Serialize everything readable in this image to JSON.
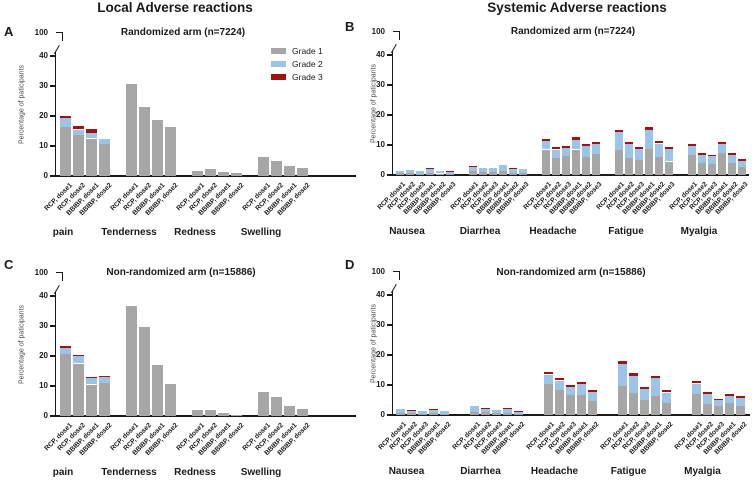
{
  "figure": {
    "title_local": "Local Adverse reactions",
    "title_systemic": "Systemic Adverse reactions",
    "y_axis_label": "Percentage of paticipants",
    "y_ticks": [
      "0",
      "10",
      "20",
      "30",
      "40"
    ],
    "y_break_top": "100",
    "colors": {
      "grade1": "#a6a6a6",
      "grade2": "#9dc3e6",
      "grade3": "#9b1313"
    },
    "legend": [
      {
        "label": "Grade 1",
        "color": "#a6a6a6"
      },
      {
        "label": "Grade 2",
        "color": "#9dc3e6"
      },
      {
        "label": "Grade 3",
        "color": "#9b1313"
      }
    ]
  },
  "chart_data": [
    {
      "panel": "A",
      "type": "bar",
      "stacked": true,
      "title": "Randomized arm (n=7224)",
      "ylabel": "Percentage of paticipants",
      "ylim": [
        0,
        40
      ],
      "y_axis_break_to": 100,
      "legend_position": "top-right",
      "series_names": [
        "Grade 1",
        "Grade 2",
        "Grade 3"
      ],
      "groups": [
        {
          "category": "pain",
          "bars": [
            {
              "label": "RCP, dose1",
              "values": [
                16.2,
                3.0,
                0.9
              ]
            },
            {
              "label": "RCP, dose2",
              "values": [
                13.7,
                1.8,
                1.1
              ]
            },
            {
              "label": "BBIBP, dose1",
              "values": [
                12.5,
                1.7,
                1.6
              ]
            },
            {
              "label": "BBIBP, dose2",
              "values": [
                10.8,
                1.5,
                0
              ]
            }
          ]
        },
        {
          "category": "Tenderness",
          "bars": [
            {
              "label": "RCP, dose1",
              "values": [
                30.8,
                0,
                0
              ]
            },
            {
              "label": "RCP, dose2",
              "values": [
                23.1,
                0,
                0
              ]
            },
            {
              "label": "BBIBP, dose1",
              "values": [
                18.7,
                0,
                0
              ]
            },
            {
              "label": "BBIBP, dose2",
              "values": [
                16.5,
                0,
                0
              ]
            }
          ]
        },
        {
          "category": "Redness",
          "bars": [
            {
              "label": "RCP, dose1",
              "values": [
                1.8,
                0,
                0
              ]
            },
            {
              "label": "RCP, dose2",
              "values": [
                2.3,
                0,
                0
              ]
            },
            {
              "label": "BBIBP, dose1",
              "values": [
                1.2,
                0,
                0
              ]
            },
            {
              "label": "BBIBP, dose2",
              "values": [
                1.0,
                0,
                0
              ]
            }
          ]
        },
        {
          "category": "Swelling",
          "bars": [
            {
              "label": "RCP, dose1",
              "values": [
                6.3,
                0,
                0
              ]
            },
            {
              "label": "RCP, dose2",
              "values": [
                5.0,
                0,
                0
              ]
            },
            {
              "label": "BBIBP, dose1",
              "values": [
                3.5,
                0,
                0
              ]
            },
            {
              "label": "BBIBP, dose2",
              "values": [
                2.8,
                0,
                0
              ]
            }
          ]
        }
      ]
    },
    {
      "panel": "B",
      "type": "bar",
      "stacked": true,
      "title": "Randomized arm (n=7224)",
      "ylabel": "Percentage of paticipants",
      "ylim": [
        0,
        40
      ],
      "y_axis_break_to": 100,
      "series_names": [
        "Grade 1",
        "Grade 2",
        "Grade 3"
      ],
      "groups": [
        {
          "category": "Nausea",
          "bars": [
            {
              "label": "RCP, dose1",
              "values": [
                0.6,
                0.9,
                0
              ]
            },
            {
              "label": "RCP, dose2",
              "values": [
                0.7,
                1.1,
                0
              ]
            },
            {
              "label": "RCP, dose3",
              "values": [
                0.4,
                0.8,
                0
              ]
            },
            {
              "label": "BBIBP, dose1",
              "values": [
                0.8,
                1.2,
                0.2
              ]
            },
            {
              "label": "BBIBP, dose2",
              "values": [
                0.5,
                0.8,
                0
              ]
            },
            {
              "label": "BBIBP, dose3",
              "values": [
                0.4,
                0.9,
                0.2
              ]
            }
          ]
        },
        {
          "category": "Diarrhea",
          "bars": [
            {
              "label": "RCP, dose1",
              "values": [
                1.2,
                1.4,
                0.3
              ]
            },
            {
              "label": "RCP, dose2",
              "values": [
                1.0,
                1.3,
                0
              ]
            },
            {
              "label": "RCP, dose3",
              "values": [
                0.9,
                1.4,
                0
              ]
            },
            {
              "label": "BBIBP, dose1",
              "values": [
                1.2,
                2.0,
                0
              ]
            },
            {
              "label": "BBIBP, dose2",
              "values": [
                0.8,
                1.2,
                0.3
              ]
            },
            {
              "label": "BBIBP, dose3",
              "values": [
                0.7,
                1.2,
                0
              ]
            }
          ]
        },
        {
          "category": "Headache",
          "bars": [
            {
              "label": "RCP, dose1",
              "values": [
                8.5,
                2.7,
                0.8
              ]
            },
            {
              "label": "RCP, dose2",
              "values": [
                5.6,
                2.9,
                0.7
              ]
            },
            {
              "label": "RCP, dose3",
              "values": [
                6.3,
                2.6,
                0.8
              ]
            },
            {
              "label": "BBIBP, dose1",
              "values": [
                8.5,
                3.2,
                1.0
              ]
            },
            {
              "label": "BBIBP, dose2",
              "values": [
                6.1,
                3.5,
                0.8
              ]
            },
            {
              "label": "BBIBP, dose3",
              "values": [
                7.0,
                3.2,
                0.7
              ]
            }
          ]
        },
        {
          "category": "Fatigue",
          "bars": [
            {
              "label": "RCP, dose1",
              "values": [
                8.3,
                6.1,
                0.7
              ]
            },
            {
              "label": "RCP, dose2",
              "values": [
                5.6,
                4.7,
                0.7
              ]
            },
            {
              "label": "RCP, dose3",
              "values": [
                5.0,
                3.6,
                0.6
              ]
            },
            {
              "label": "BBIBP, dose1",
              "values": [
                8.7,
                6.4,
                0.8
              ]
            },
            {
              "label": "BBIBP, dose2",
              "values": [
                5.9,
                4.6,
                0.7
              ]
            },
            {
              "label": "BBIBP, dose3",
              "values": [
                4.5,
                4.1,
                0.6
              ]
            }
          ]
        },
        {
          "category": "Myalgia",
          "bars": [
            {
              "label": "RCP, dose1",
              "values": [
                6.6,
                3.1,
                0.5
              ]
            },
            {
              "label": "RCP, dose2",
              "values": [
                3.9,
                2.9,
                0.4
              ]
            },
            {
              "label": "RCP, dose3",
              "values": [
                3.6,
                2.7,
                0.5
              ]
            },
            {
              "label": "BBIBP, dose1",
              "values": [
                7.4,
                3.1,
                0.5
              ]
            },
            {
              "label": "BBIBP, dose2",
              "values": [
                4.0,
                2.7,
                0.5
              ]
            },
            {
              "label": "BBIBP, dose3",
              "values": [
                2.8,
                2.0,
                0.7
              ]
            }
          ]
        }
      ]
    },
    {
      "panel": "C",
      "type": "bar",
      "stacked": true,
      "title": "Non-randomized arm (n=15886)",
      "ylabel": "Percentage of paticipants",
      "ylim": [
        0,
        40
      ],
      "y_axis_break_to": 100,
      "series_names": [
        "Grade 1",
        "Grade 2",
        "Grade 3"
      ],
      "groups": [
        {
          "category": "pain",
          "bars": [
            {
              "label": "RCP, dose1",
              "values": [
                20.8,
                2.0,
                0.5
              ]
            },
            {
              "label": "RCP, dose2",
              "values": [
                17.5,
                2.6,
                0.4
              ]
            },
            {
              "label": "BBIBP, dose1",
              "values": [
                10.5,
                2.3,
                0.2
              ]
            },
            {
              "label": "BBIBP, dose2",
              "values": [
                11.0,
                1.9,
                0.4
              ]
            }
          ]
        },
        {
          "category": "Tenderness",
          "bars": [
            {
              "label": "RCP, dose1",
              "values": [
                36.8,
                0,
                0
              ]
            },
            {
              "label": "RCP, dose2",
              "values": [
                29.8,
                0,
                0
              ]
            },
            {
              "label": "BBIBP, dose1",
              "values": [
                17.0,
                0,
                0
              ]
            },
            {
              "label": "BBIBP, dose2",
              "values": [
                10.8,
                0,
                0
              ]
            }
          ]
        },
        {
          "category": "Redness",
          "bars": [
            {
              "label": "RCP, dose1",
              "values": [
                2.0,
                0,
                0
              ]
            },
            {
              "label": "RCP, dose2",
              "values": [
                1.9,
                0,
                0
              ]
            },
            {
              "label": "BBIBP, dose1",
              "values": [
                0.9,
                0,
                0
              ]
            },
            {
              "label": "BBIBP, dose2",
              "values": [
                0.5,
                0,
                0
              ]
            }
          ]
        },
        {
          "category": "Swelling",
          "bars": [
            {
              "label": "RCP, dose1",
              "values": [
                8.0,
                0,
                0
              ]
            },
            {
              "label": "RCP, dose2",
              "values": [
                6.5,
                0,
                0
              ]
            },
            {
              "label": "BBIBP, dose1",
              "values": [
                3.5,
                0,
                0
              ]
            },
            {
              "label": "BBIBP, dose2",
              "values": [
                2.5,
                0,
                0
              ]
            }
          ]
        }
      ]
    },
    {
      "panel": "D",
      "type": "bar",
      "stacked": true,
      "title": "Non-randomized arm (n=15886)",
      "ylabel": "Percentage of paticipants",
      "ylim": [
        0,
        40
      ],
      "y_axis_break_to": 100,
      "series_names": [
        "Grade 1",
        "Grade 2",
        "Grade 3"
      ],
      "groups": [
        {
          "category": "Nausea",
          "bars": [
            {
              "label": "RCP, dose1",
              "values": [
                0.7,
                1.3,
                0
              ]
            },
            {
              "label": "RCP, dose2",
              "values": [
                0.6,
                0.8,
                0.2
              ]
            },
            {
              "label": "RCP, dose3",
              "values": [
                0.4,
                0.8,
                0
              ]
            },
            {
              "label": "BBIBP, dose1",
              "values": [
                0.7,
                1.0,
                0.2
              ]
            },
            {
              "label": "BBIBP, dose2",
              "values": [
                0.5,
                1.0,
                0
              ]
            }
          ]
        },
        {
          "category": "Diarrhea",
          "bars": [
            {
              "label": "RCP, dose1",
              "values": [
                1.1,
                1.8,
                0
              ]
            },
            {
              "label": "RCP, dose2",
              "values": [
                0.9,
                1.3,
                0.2
              ]
            },
            {
              "label": "RCP, dose3",
              "values": [
                0.6,
                1.1,
                0
              ]
            },
            {
              "label": "BBIBP, dose1",
              "values": [
                0.8,
                1.4,
                0.3
              ]
            },
            {
              "label": "BBIBP, dose2",
              "values": [
                0.5,
                0.5,
                0.2
              ]
            }
          ]
        },
        {
          "category": "Headache",
          "bars": [
            {
              "label": "RCP, dose1",
              "values": [
                10.3,
                3.2,
                0.8
              ]
            },
            {
              "label": "RCP, dose2",
              "values": [
                8.2,
                3.3,
                0.8
              ]
            },
            {
              "label": "RCP, dose3",
              "values": [
                6.6,
                2.6,
                0.7
              ]
            },
            {
              "label": "BBIBP, dose1",
              "values": [
                6.8,
                3.5,
                0.8
              ]
            },
            {
              "label": "BBIBP, dose2",
              "values": [
                4.8,
                3.0,
                0.6
              ]
            }
          ]
        },
        {
          "category": "Fatigue",
          "bars": [
            {
              "label": "RCP, dose1",
              "values": [
                9.7,
                7.4,
                0.8
              ]
            },
            {
              "label": "RCP, dose2",
              "values": [
                7.3,
                5.8,
                0.8
              ]
            },
            {
              "label": "RCP, dose3",
              "values": [
                4.9,
                3.8,
                0.5
              ]
            },
            {
              "label": "BBIBP, dose1",
              "values": [
                6.4,
                5.8,
                0.8
              ]
            },
            {
              "label": "BBIBP, dose2",
              "values": [
                4.0,
                3.5,
                0.7
              ]
            }
          ]
        },
        {
          "category": "Myalgia",
          "bars": [
            {
              "label": "RCP, dose1",
              "values": [
                7.1,
                3.4,
                0.8
              ]
            },
            {
              "label": "RCP, dose2",
              "values": [
                3.8,
                3.2,
                0.7
              ]
            },
            {
              "label": "RCP, dose3",
              "values": [
                2.9,
                2.0,
                0.6
              ]
            },
            {
              "label": "BBIBP, dose1",
              "values": [
                4.1,
                2.2,
                0.7
              ]
            },
            {
              "label": "BBIBP, dose2",
              "values": [
                2.9,
                2.7,
                0.8
              ]
            }
          ]
        }
      ]
    }
  ]
}
